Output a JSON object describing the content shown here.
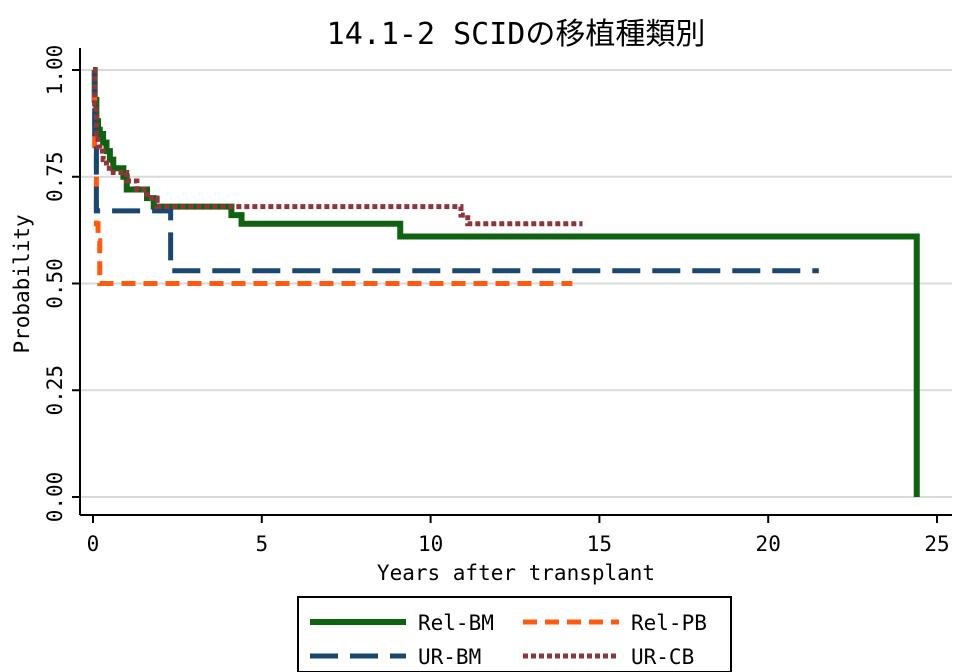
{
  "chart_data": {
    "type": "line",
    "step": true,
    "title": "14.1-2 SCIDの移植種類別",
    "xlabel": "Years after transplant",
    "ylabel": "Probability",
    "xlim": [
      0,
      25
    ],
    "ylim": [
      0,
      1
    ],
    "x_ticks": [
      {
        "value": 0,
        "label": "0"
      },
      {
        "value": 5,
        "label": "5"
      },
      {
        "value": 10,
        "label": "10"
      },
      {
        "value": 15,
        "label": "15"
      },
      {
        "value": 20,
        "label": "20"
      },
      {
        "value": 25,
        "label": "25"
      }
    ],
    "y_ticks": [
      {
        "value": 0,
        "label": "0.00"
      },
      {
        "value": 0.25,
        "label": "0.25"
      },
      {
        "value": 0.5,
        "label": "0.50"
      },
      {
        "value": 0.75,
        "label": "0.75"
      },
      {
        "value": 1,
        "label": "1.00"
      }
    ],
    "grid": "horizontal",
    "legend_position": "bottom",
    "series": [
      {
        "name": "Rel-BM",
        "color": "#0f620f",
        "dash": "solid",
        "points": [
          [
            0,
            1
          ],
          [
            0.05,
            0.93
          ],
          [
            0.1,
            0.88
          ],
          [
            0.15,
            0.86
          ],
          [
            0.2,
            0.85
          ],
          [
            0.3,
            0.83
          ],
          [
            0.4,
            0.81
          ],
          [
            0.5,
            0.79
          ],
          [
            0.6,
            0.77
          ],
          [
            0.9,
            0.75
          ],
          [
            1.0,
            0.72
          ],
          [
            1.6,
            0.7
          ],
          [
            1.8,
            0.68
          ],
          [
            4.1,
            0.66
          ],
          [
            4.4,
            0.64
          ],
          [
            9.1,
            0.61
          ],
          [
            24.4,
            0.61
          ],
          [
            24.4,
            0.0
          ]
        ]
      },
      {
        "name": "Rel-PB",
        "color": "#ff5a0f",
        "dash": "dashed-short",
        "points": [
          [
            0,
            1
          ],
          [
            0.05,
            0.8
          ],
          [
            0.1,
            0.64
          ],
          [
            0.15,
            0.6
          ],
          [
            0.2,
            0.5
          ],
          [
            14.2,
            0.5
          ]
        ]
      },
      {
        "name": "UR-BM",
        "color": "#1a476f",
        "dash": "dashed-long",
        "points": [
          [
            0,
            1
          ],
          [
            0.05,
            0.83
          ],
          [
            0.1,
            0.67
          ],
          [
            2.3,
            0.53
          ],
          [
            21.5,
            0.53
          ]
        ]
      },
      {
        "name": "UR-CB",
        "color": "#90353b",
        "dash": "dotted",
        "points": [
          [
            0,
            1
          ],
          [
            0.05,
            0.92
          ],
          [
            0.1,
            0.85
          ],
          [
            0.15,
            0.82
          ],
          [
            0.2,
            0.81
          ],
          [
            0.3,
            0.79
          ],
          [
            0.4,
            0.77
          ],
          [
            0.6,
            0.76
          ],
          [
            1.0,
            0.74
          ],
          [
            1.3,
            0.72
          ],
          [
            1.6,
            0.7
          ],
          [
            1.9,
            0.68
          ],
          [
            10.9,
            0.66
          ],
          [
            11.1,
            0.64
          ],
          [
            14.5,
            0.64
          ]
        ]
      }
    ]
  }
}
